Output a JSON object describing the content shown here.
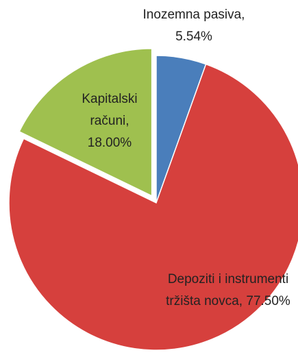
{
  "chart_data": {
    "type": "pie",
    "categories": [
      "Inozemna pasiva,",
      "Depoziti i instrumenti tržišta novca,",
      "Kapitalski računi,"
    ],
    "values": [
      5.54,
      77.5,
      18.0
    ],
    "value_labels": [
      "5.54%",
      "77.50%",
      "18.00%"
    ],
    "colors": [
      "#4a7ebb",
      "#d6403d",
      "#9fc04f"
    ],
    "exploded": [
      false,
      false,
      true
    ]
  }
}
